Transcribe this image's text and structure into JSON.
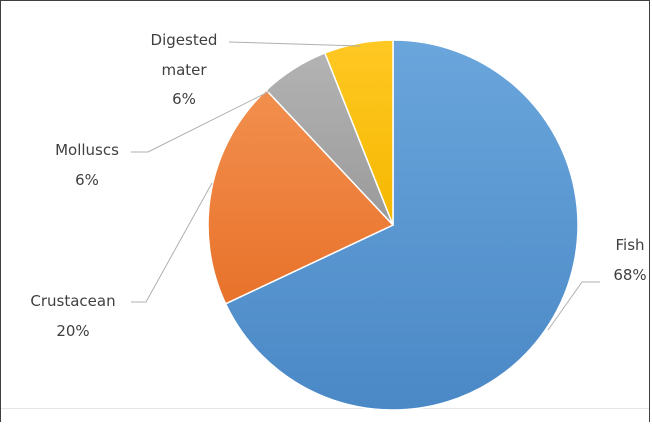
{
  "chart_data": {
    "type": "pie",
    "title": "",
    "categories": [
      "Fish",
      "Crustacean",
      "Molluscs",
      "Digested mater"
    ],
    "values": [
      68,
      20,
      6,
      6
    ],
    "value_labels": [
      "68%",
      "20%",
      "6%",
      "6%"
    ],
    "colors": [
      "#5b9bd5",
      "#ed7d31",
      "#a5a5a5",
      "#ffc000"
    ],
    "start_angle": "12 o'clock",
    "direction": "clockwise",
    "legend": "none",
    "data_labels": "category name and percentage, outside with leader lines"
  }
}
